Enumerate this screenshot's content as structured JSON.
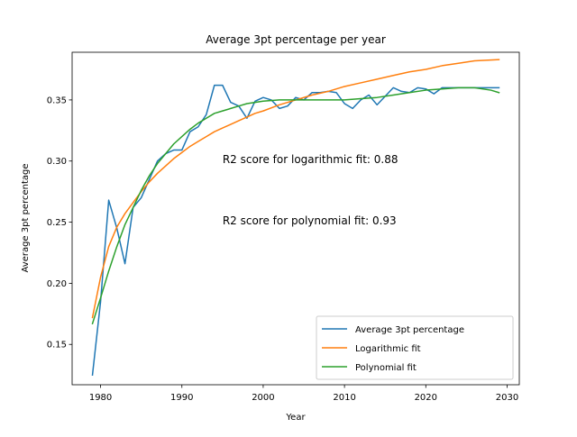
{
  "chart_data": {
    "type": "line",
    "title": "Average 3pt percentage per year",
    "xlabel": "Year",
    "ylabel": "Average 3pt percentage",
    "xlim": [
      1976.5,
      2031.5
    ],
    "ylim": [
      0.117,
      0.389
    ],
    "xticks": [
      1980,
      1990,
      2000,
      2010,
      2020,
      2030
    ],
    "yticks": [
      0.15,
      0.2,
      0.25,
      0.3,
      0.35
    ],
    "ytick_labels": [
      "0.15",
      "0.20",
      "0.25",
      "0.30",
      "0.35"
    ],
    "grid": false,
    "legend_position": "lower-right",
    "annotations": [
      {
        "text": "R2 score for logarithmic fit: 0.88",
        "x": 1995,
        "y": 0.302
      },
      {
        "text": "R2 score for polynomial fit: 0.93",
        "x": 1995,
        "y": 0.252
      }
    ],
    "series": [
      {
        "name": "Average 3pt percentage",
        "color": "#1f77b4",
        "x": [
          1979,
          1980,
          1981,
          1982,
          1983,
          1984,
          1985,
          1986,
          1987,
          1988,
          1989,
          1990,
          1991,
          1992,
          1993,
          1994,
          1995,
          1996,
          1997,
          1998,
          1999,
          2000,
          2001,
          2002,
          2003,
          2004,
          2005,
          2006,
          2007,
          2008,
          2009,
          2010,
          2011,
          2012,
          2013,
          2014,
          2015,
          2016,
          2017,
          2018,
          2019,
          2020,
          2021,
          2022,
          2023,
          2024,
          2025,
          2026,
          2027,
          2028,
          2029
        ],
        "y": [
          0.125,
          0.185,
          0.268,
          0.245,
          0.216,
          0.262,
          0.27,
          0.285,
          0.3,
          0.306,
          0.309,
          0.309,
          0.324,
          0.328,
          0.338,
          0.362,
          0.362,
          0.348,
          0.345,
          0.335,
          0.349,
          0.352,
          0.35,
          0.343,
          0.345,
          0.352,
          0.35,
          0.356,
          0.356,
          0.357,
          0.356,
          0.347,
          0.343,
          0.35,
          0.354,
          0.346,
          0.353,
          0.36,
          0.357,
          0.356,
          0.36,
          0.359,
          0.355,
          0.36,
          0.36,
          0.36,
          0.36,
          0.36,
          0.36,
          0.36,
          0.36
        ]
      },
      {
        "name": "Logarithmic fit",
        "color": "#ff7f0e",
        "x": [
          1979,
          1980,
          1981,
          1982,
          1983,
          1984,
          1985,
          1986,
          1987,
          1988,
          1989,
          1990,
          1991,
          1992,
          1993,
          1994,
          1995,
          1996,
          1997,
          1998,
          1999,
          2000,
          2002,
          2004,
          2006,
          2008,
          2010,
          2012,
          2014,
          2016,
          2018,
          2020,
          2022,
          2024,
          2026,
          2029
        ],
        "y": [
          0.172,
          0.205,
          0.23,
          0.246,
          0.257,
          0.266,
          0.275,
          0.283,
          0.29,
          0.296,
          0.302,
          0.307,
          0.312,
          0.316,
          0.32,
          0.324,
          0.327,
          0.33,
          0.333,
          0.336,
          0.339,
          0.341,
          0.346,
          0.35,
          0.354,
          0.357,
          0.361,
          0.364,
          0.367,
          0.37,
          0.373,
          0.375,
          0.378,
          0.38,
          0.382,
          0.383
        ]
      },
      {
        "name": "Polynomial fit",
        "color": "#2ca02c",
        "x": [
          1979,
          1980,
          1981,
          1982,
          1983,
          1984,
          1985,
          1986,
          1987,
          1988,
          1989,
          1990,
          1991,
          1992,
          1993,
          1994,
          1995,
          1996,
          1997,
          1998,
          1999,
          2000,
          2002,
          2004,
          2006,
          2008,
          2010,
          2012,
          2014,
          2016,
          2018,
          2020,
          2022,
          2024,
          2026,
          2028,
          2029
        ],
        "y": [
          0.167,
          0.188,
          0.21,
          0.23,
          0.248,
          0.262,
          0.276,
          0.288,
          0.298,
          0.306,
          0.314,
          0.32,
          0.326,
          0.331,
          0.335,
          0.339,
          0.341,
          0.343,
          0.345,
          0.347,
          0.348,
          0.349,
          0.35,
          0.35,
          0.35,
          0.35,
          0.35,
          0.351,
          0.352,
          0.354,
          0.356,
          0.358,
          0.359,
          0.36,
          0.36,
          0.358,
          0.356
        ]
      }
    ]
  }
}
